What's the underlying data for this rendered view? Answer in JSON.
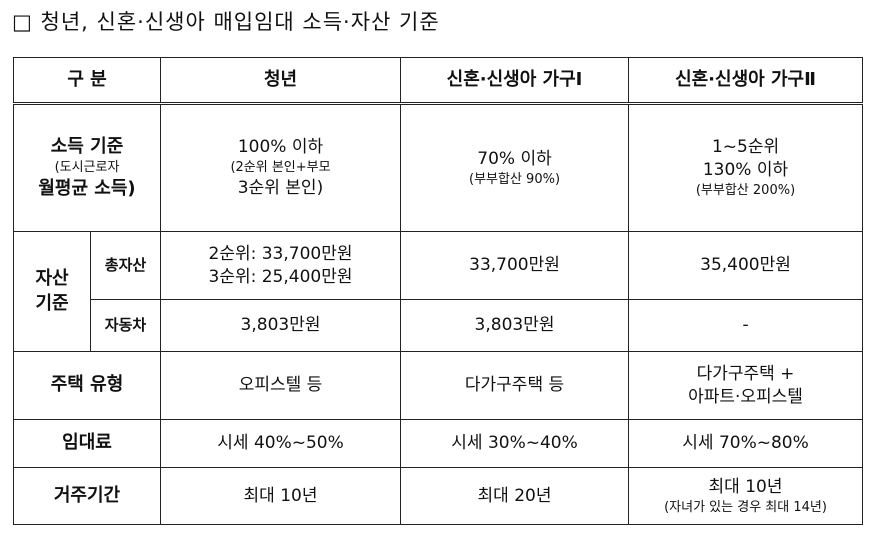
{
  "header": {
    "title": "□ 청년, 신혼·신생아 매입임대 소득·자산 기준"
  },
  "table": {
    "columns": [
      "구 분",
      "청년",
      "신혼·신생아 가구Ⅰ",
      "신혼·신생아 가구Ⅱ"
    ],
    "income": {
      "label": [
        "소득 기준",
        "(도시근로자",
        "월평균 소득)"
      ],
      "cells": [
        [
          "100% 이하",
          "(2순위 본인+부모",
          "3순위 본인)"
        ],
        [
          "70% 이하",
          "(부부합산 90%)"
        ],
        [
          "1~5순위",
          "130% 이하",
          "(부부합산 200%)"
        ]
      ]
    },
    "assets": {
      "label": [
        "자산",
        "기준"
      ],
      "rows": [
        {
          "label": "총자산",
          "cells": [
            [
              "2순위: 33,700만원",
              "3순위: 25,400만원"
            ],
            [
              "33,700만원"
            ],
            [
              "35,400만원"
            ]
          ]
        },
        {
          "label": "자동차",
          "cells": [
            [
              "3,803만원"
            ],
            [
              "3,803만원"
            ],
            [
              "-"
            ]
          ]
        }
      ]
    },
    "rows": [
      {
        "label": "주택 유형",
        "cells": [
          [
            "오피스텔 등"
          ],
          [
            "다가구주택 등"
          ],
          [
            "다가구주택 +",
            "아파트·오피스텔"
          ]
        ]
      },
      {
        "label": "임대료",
        "cells": [
          [
            "시세 40%~50%"
          ],
          [
            "시세 30%~40%"
          ],
          [
            "시세 70%~80%"
          ]
        ]
      },
      {
        "label": "거주기간",
        "cells": [
          [
            "최대 10년"
          ],
          [
            "최대 20년"
          ],
          [
            "최대 10년",
            "(자녀가 있는 경우 최대 14년)"
          ]
        ]
      }
    ]
  }
}
